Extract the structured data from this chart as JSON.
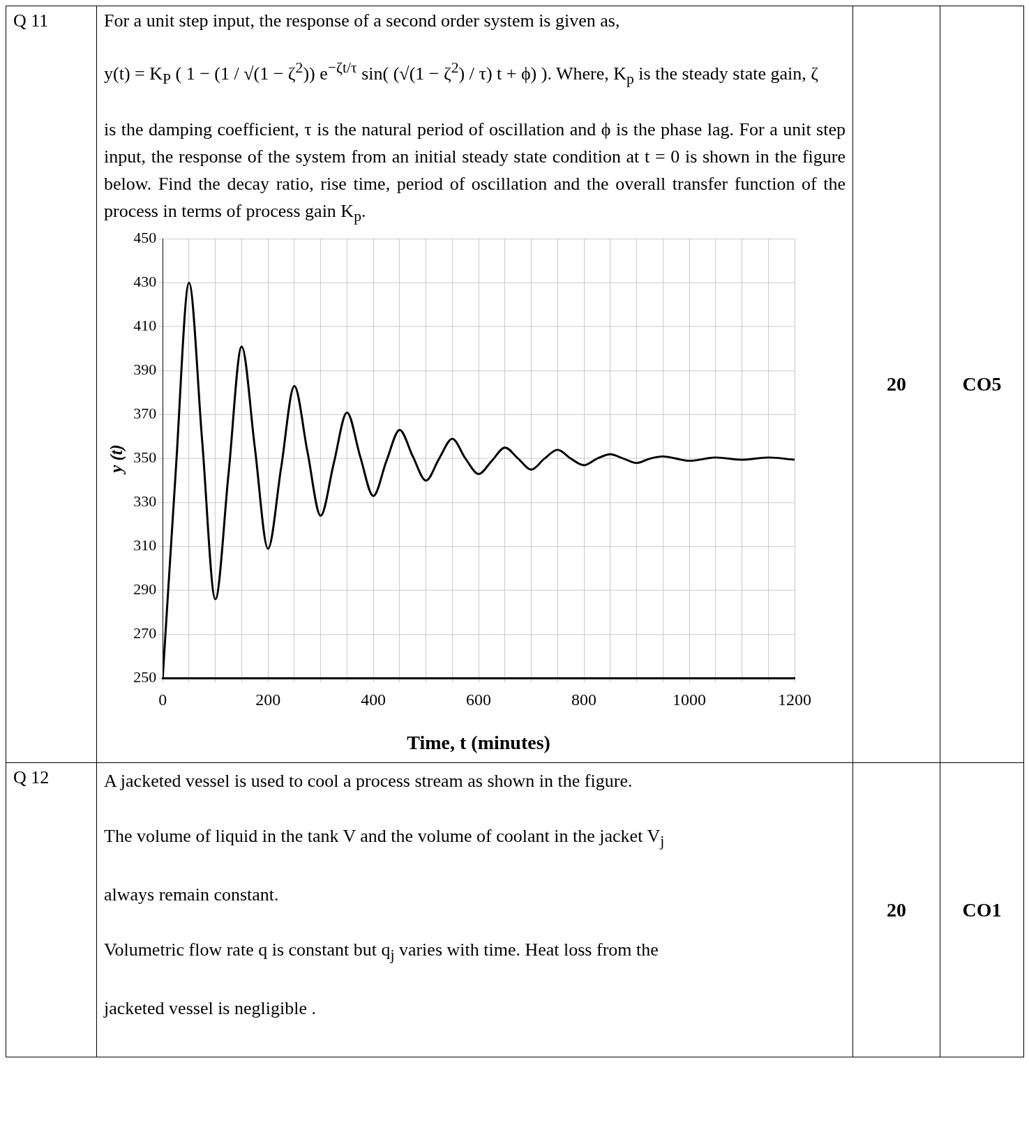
{
  "chart_data": {
    "type": "line",
    "xlabel": "Time, t (minutes)",
    "ylabel": "y (t)",
    "x": [
      0,
      25,
      50,
      75,
      100,
      125,
      150,
      175,
      200,
      225,
      250,
      275,
      300,
      325,
      350,
      375,
      400,
      425,
      450,
      475,
      500,
      525,
      550,
      575,
      600,
      625,
      650,
      675,
      700,
      725,
      750,
      775,
      800,
      825,
      850,
      875,
      900,
      925,
      950,
      975,
      1000,
      1050,
      1100,
      1150,
      1200
    ],
    "series": [
      {
        "color": "#000000",
        "values": [
          250,
          345,
          430,
          358,
          286,
          343,
          401,
          355,
          309,
          346,
          383,
          353,
          324,
          348,
          371,
          351,
          333,
          349,
          363,
          351,
          340,
          350,
          359,
          350,
          343,
          349,
          355,
          350,
          345,
          350,
          354,
          350,
          347,
          350,
          352,
          350,
          348,
          350,
          351,
          350,
          349,
          350.5,
          349.5,
          350.5,
          349.5
        ]
      }
    ],
    "xlim": [
      0,
      1200
    ],
    "ylim": [
      250,
      450
    ],
    "xticks": [
      0,
      {
        "value": 50,
        "label": null
      },
      {
        "value": 100,
        "label": null
      },
      {
        "value": 150,
        "label": null
      },
      200,
      {
        "value": 250,
        "label": null
      },
      {
        "value": 300,
        "label": null
      },
      {
        "value": 350,
        "label": null
      },
      400,
      {
        "value": 450,
        "label": null
      },
      {
        "value": 500,
        "label": null
      },
      {
        "value": 550,
        "label": null
      },
      600,
      {
        "value": 650,
        "label": null
      },
      {
        "value": 700,
        "label": null
      },
      {
        "value": 750,
        "label": null
      },
      800,
      {
        "value": 850,
        "label": null
      },
      {
        "value": 900,
        "label": null
      },
      {
        "value": 950,
        "label": null
      },
      1000,
      {
        "value": 1050,
        "label": null
      },
      {
        "value": 1100,
        "label": null
      },
      {
        "value": 1150,
        "label": null
      },
      1200
    ],
    "yticks": [
      250,
      270,
      290,
      310,
      330,
      350,
      370,
      390,
      410,
      430,
      450
    ],
    "grid": true,
    "legend": false,
    "line_style": "solid",
    "marker": "none",
    "annotations": [
      "Q 11",
      "For a unit step input, the response of a second order system is given as,",
      "y(t) = K$_{P}$ ( 1 − (1 / √(1 − ζ$^{2}$)) e$^{−ζt/τ}$ sin( (√(1 − ζ$^{2}$) / τ) t + ϕ) ). Where, K$_{p}$ is the steady state gain, ζ",
      "is the damping coefficient, τ is the natural period of oscillation and ϕ is the phase lag. For a unit step input, the response of the system from an initial steady state condition at t = 0 is shown in the figure below. Find the decay ratio, rise time, period of oscillation and the overall transfer function of the process in terms of process gain K$_{p}$.",
      "20",
      "CO5",
      "Q 12",
      "A jacketed vessel is used to cool a process stream as shown in the figure.",
      "The volume of liquid in the tank V and the volume of coolant in the jacket V$_{j}$",
      "always remain constant.",
      "Volumetric flow rate q is constant but q$_{j}$ varies with time. Heat loss from the",
      "jacketed vessel is negligible .",
      "20",
      "CO1"
    ]
  }
}
